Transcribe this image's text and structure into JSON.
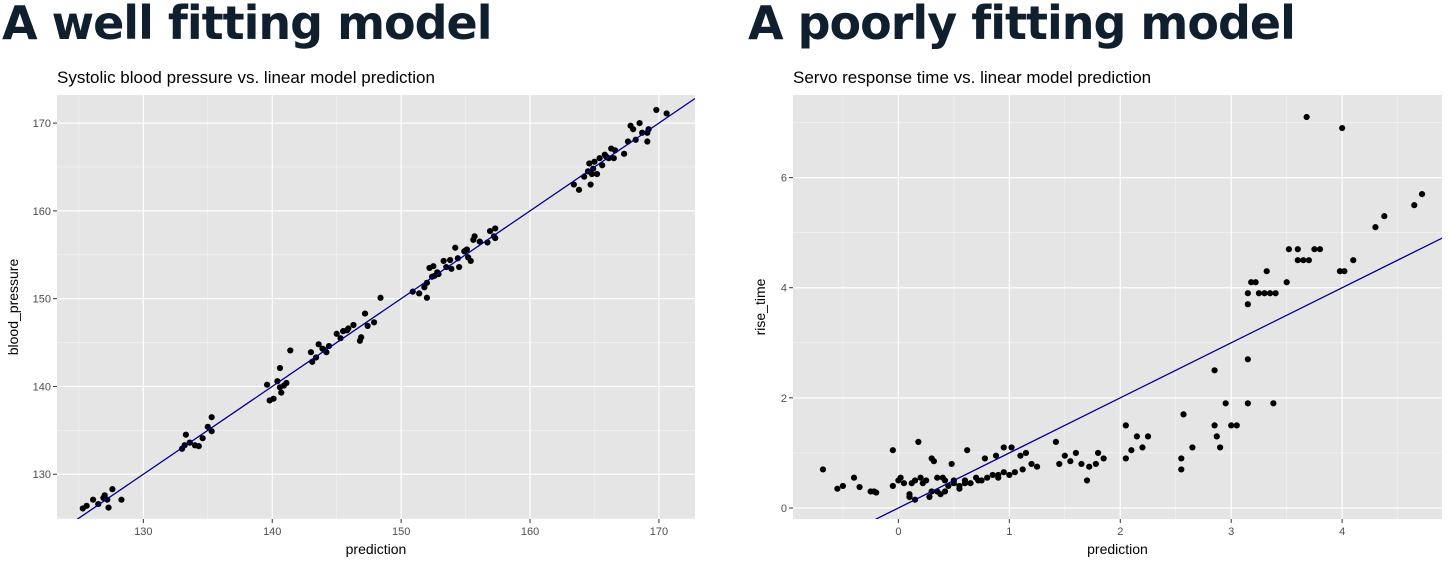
{
  "headings": [
    "A well fitting model",
    "A poorly fitting model"
  ],
  "colors": {
    "panel_bg": "#e5e5e5",
    "grid_major": "#ffffff",
    "points": "#000000",
    "fit_line": "#00008b",
    "heading": "#0f1f2e"
  },
  "chart_data": [
    {
      "type": "scatter",
      "title": "Systolic blood pressure vs. linear model prediction",
      "xlabel": "prediction",
      "ylabel": "blood_pressure",
      "xlim": [
        123.3,
        172.8
      ],
      "ylim": [
        124.9,
        173.2
      ],
      "xticks": [
        130,
        140,
        150,
        160,
        170
      ],
      "yticks": [
        130,
        140,
        150,
        160,
        170
      ],
      "grid": true,
      "reference_line": {
        "slope": 1,
        "intercept": 0
      },
      "points": [
        [
          125.3,
          126.1
        ],
        [
          125.6,
          126.4
        ],
        [
          126.1,
          127.1
        ],
        [
          126.5,
          126.6
        ],
        [
          126.9,
          127.3
        ],
        [
          127.0,
          127.6
        ],
        [
          127.3,
          126.2
        ],
        [
          127.6,
          128.3
        ],
        [
          127.2,
          127.1
        ],
        [
          128.3,
          127.1
        ],
        [
          133.0,
          132.9
        ],
        [
          133.2,
          133.3
        ],
        [
          133.3,
          134.5
        ],
        [
          133.6,
          133.6
        ],
        [
          134.0,
          133.3
        ],
        [
          134.3,
          133.2
        ],
        [
          134.6,
          134.1
        ],
        [
          135.0,
          135.4
        ],
        [
          135.3,
          136.5
        ],
        [
          135.3,
          134.9
        ],
        [
          139.6,
          140.2
        ],
        [
          139.8,
          138.4
        ],
        [
          140.1,
          138.6
        ],
        [
          140.4,
          140.6
        ],
        [
          140.6,
          142.1
        ],
        [
          140.7,
          139.3
        ],
        [
          141.1,
          140.4
        ],
        [
          141.4,
          144.1
        ],
        [
          140.9,
          140.1
        ],
        [
          140.6,
          139.9
        ],
        [
          143.0,
          143.9
        ],
        [
          143.1,
          142.8
        ],
        [
          143.4,
          143.3
        ],
        [
          143.6,
          144.8
        ],
        [
          143.9,
          144.3
        ],
        [
          144.2,
          143.9
        ],
        [
          144.4,
          144.6
        ],
        [
          145.0,
          146.0
        ],
        [
          145.3,
          145.5
        ],
        [
          145.5,
          146.3
        ],
        [
          145.9,
          146.6
        ],
        [
          146.3,
          147.0
        ],
        [
          146.8,
          145.2
        ],
        [
          146.9,
          145.6
        ],
        [
          147.2,
          148.3
        ],
        [
          147.4,
          146.9
        ],
        [
          147.9,
          147.3
        ],
        [
          148.4,
          150.1
        ],
        [
          145.8,
          146.4
        ],
        [
          144.0,
          144.2
        ],
        [
          150.9,
          150.8
        ],
        [
          151.4,
          150.6
        ],
        [
          151.8,
          151.3
        ],
        [
          152.0,
          151.8
        ],
        [
          152.0,
          150.1
        ],
        [
          152.2,
          153.5
        ],
        [
          152.4,
          152.5
        ],
        [
          152.5,
          153.7
        ],
        [
          152.9,
          152.8
        ],
        [
          153.3,
          154.3
        ],
        [
          153.5,
          153.6
        ],
        [
          153.8,
          154.4
        ],
        [
          154.2,
          155.8
        ],
        [
          154.4,
          154.6
        ],
        [
          154.5,
          153.6
        ],
        [
          154.9,
          155.4
        ],
        [
          155.2,
          154.7
        ],
        [
          155.4,
          154.3
        ],
        [
          155.6,
          156.7
        ],
        [
          155.7,
          157.1
        ],
        [
          156.1,
          156.5
        ],
        [
          156.7,
          156.4
        ],
        [
          156.9,
          157.7
        ],
        [
          157.2,
          157.1
        ],
        [
          157.3,
          158.0
        ],
        [
          157.3,
          156.9
        ],
        [
          152.6,
          152.6
        ],
        [
          153.9,
          153.4
        ],
        [
          155.1,
          155.6
        ],
        [
          152.8,
          153.0
        ],
        [
          163.4,
          163.0
        ],
        [
          163.8,
          162.4
        ],
        [
          164.2,
          163.9
        ],
        [
          164.5,
          164.5
        ],
        [
          164.6,
          165.4
        ],
        [
          164.7,
          163.0
        ],
        [
          164.9,
          164.8
        ],
        [
          165.2,
          164.2
        ],
        [
          165.4,
          166.0
        ],
        [
          165.6,
          165.2
        ],
        [
          165.8,
          166.4
        ],
        [
          166.1,
          166.0
        ],
        [
          166.3,
          167.1
        ],
        [
          166.5,
          166.0
        ],
        [
          167.3,
          166.5
        ],
        [
          167.6,
          167.9
        ],
        [
          167.8,
          169.7
        ],
        [
          168.0,
          169.3
        ],
        [
          168.2,
          168.1
        ],
        [
          168.5,
          170.0
        ],
        [
          168.7,
          168.9
        ],
        [
          169.1,
          168.9
        ],
        [
          169.2,
          169.3
        ],
        [
          169.1,
          167.9
        ],
        [
          169.8,
          171.5
        ],
        [
          170.6,
          171.1
        ],
        [
          165.0,
          165.6
        ],
        [
          166.6,
          166.9
        ],
        [
          164.8,
          164.2
        ],
        [
          165.9,
          166.2
        ]
      ]
    },
    {
      "type": "scatter",
      "title": "Servo response time vs. linear model prediction",
      "xlabel": "prediction",
      "ylabel": "rise_time",
      "xlim": [
        -0.95,
        4.9
      ],
      "ylim": [
        -0.2,
        7.5
      ],
      "xticks": [
        0,
        1,
        2,
        3,
        4
      ],
      "yticks": [
        0,
        2,
        4,
        6
      ],
      "grid": true,
      "reference_line": {
        "slope": 1,
        "intercept": 0
      },
      "points": [
        [
          -0.68,
          0.7
        ],
        [
          -0.55,
          0.35
        ],
        [
          -0.5,
          0.4
        ],
        [
          -0.4,
          0.55
        ],
        [
          -0.35,
          0.38
        ],
        [
          -0.25,
          0.3
        ],
        [
          -0.22,
          0.3
        ],
        [
          -0.2,
          0.28
        ],
        [
          -0.05,
          1.05
        ],
        [
          -0.05,
          0.4
        ],
        [
          0.0,
          0.5
        ],
        [
          0.02,
          0.55
        ],
        [
          0.05,
          0.45
        ],
        [
          0.1,
          0.25
        ],
        [
          0.12,
          0.45
        ],
        [
          0.15,
          0.5
        ],
        [
          0.18,
          1.2
        ],
        [
          0.2,
          0.55
        ],
        [
          0.25,
          0.5
        ],
        [
          0.28,
          0.2
        ],
        [
          0.3,
          0.9
        ],
        [
          0.32,
          0.85
        ],
        [
          0.35,
          0.3
        ],
        [
          0.38,
          0.25
        ],
        [
          0.4,
          0.55
        ],
        [
          0.42,
          0.3
        ],
        [
          0.45,
          0.4
        ],
        [
          0.48,
          0.8
        ],
        [
          0.5,
          0.5
        ],
        [
          0.55,
          0.35
        ],
        [
          0.6,
          0.45
        ],
        [
          0.62,
          1.05
        ],
        [
          0.65,
          0.45
        ],
        [
          0.7,
          0.55
        ],
        [
          0.75,
          0.5
        ],
        [
          0.78,
          0.9
        ],
        [
          0.8,
          0.55
        ],
        [
          0.85,
          0.6
        ],
        [
          0.9,
          0.6
        ],
        [
          0.95,
          1.1
        ],
        [
          0.95,
          0.65
        ],
        [
          1.0,
          0.6
        ],
        [
          1.02,
          1.1
        ],
        [
          1.05,
          0.65
        ],
        [
          1.1,
          0.95
        ],
        [
          1.15,
          1.0
        ],
        [
          1.2,
          0.8
        ],
        [
          1.25,
          0.75
        ],
        [
          1.42,
          1.2
        ],
        [
          1.45,
          0.8
        ],
        [
          1.5,
          0.95
        ],
        [
          1.55,
          0.85
        ],
        [
          1.6,
          1.0
        ],
        [
          1.65,
          0.8
        ],
        [
          1.7,
          0.5
        ],
        [
          1.72,
          0.75
        ],
        [
          1.78,
          0.8
        ],
        [
          1.8,
          1.0
        ],
        [
          1.85,
          0.9
        ],
        [
          0.88,
          0.95
        ],
        [
          2.05,
          1.5
        ],
        [
          2.05,
          0.9
        ],
        [
          2.1,
          1.05
        ],
        [
          2.15,
          1.3
        ],
        [
          2.2,
          1.1
        ],
        [
          2.25,
          1.3
        ],
        [
          2.55,
          0.7
        ],
        [
          2.55,
          0.9
        ],
        [
          2.57,
          1.7
        ],
        [
          2.65,
          1.1
        ],
        [
          2.85,
          2.5
        ],
        [
          2.85,
          1.5
        ],
        [
          2.87,
          1.3
        ],
        [
          2.9,
          1.1
        ],
        [
          2.95,
          1.9
        ],
        [
          3.0,
          1.5
        ],
        [
          3.05,
          1.5
        ],
        [
          3.15,
          2.7
        ],
        [
          3.15,
          1.9
        ],
        [
          3.15,
          3.7
        ],
        [
          3.15,
          3.9
        ],
        [
          3.18,
          4.1
        ],
        [
          3.22,
          4.1
        ],
        [
          3.25,
          3.9
        ],
        [
          3.3,
          3.9
        ],
        [
          3.32,
          4.3
        ],
        [
          3.35,
          3.9
        ],
        [
          3.38,
          1.9
        ],
        [
          3.4,
          3.9
        ],
        [
          3.5,
          4.1
        ],
        [
          3.52,
          4.7
        ],
        [
          3.6,
          4.7
        ],
        [
          3.6,
          4.5
        ],
        [
          3.65,
          4.5
        ],
        [
          3.68,
          7.1
        ],
        [
          3.7,
          4.5
        ],
        [
          3.75,
          4.7
        ],
        [
          3.8,
          4.7
        ],
        [
          3.98,
          4.3
        ],
        [
          4.0,
          6.9
        ],
        [
          4.02,
          4.3
        ],
        [
          4.1,
          4.5
        ],
        [
          4.3,
          5.1
        ],
        [
          4.38,
          5.3
        ],
        [
          4.65,
          5.5
        ],
        [
          4.72,
          5.7
        ],
        [
          0.5,
          0.45
        ],
        [
          0.6,
          0.5
        ],
        [
          0.22,
          0.45
        ],
        [
          0.35,
          0.55
        ],
        [
          0.72,
          0.5
        ],
        [
          0.9,
          0.55
        ],
        [
          1.12,
          0.7
        ],
        [
          0.55,
          0.4
        ],
        [
          0.3,
          0.3
        ],
        [
          0.15,
          0.15
        ],
        [
          0.1,
          0.2
        ],
        [
          0.42,
          0.5
        ]
      ]
    }
  ]
}
